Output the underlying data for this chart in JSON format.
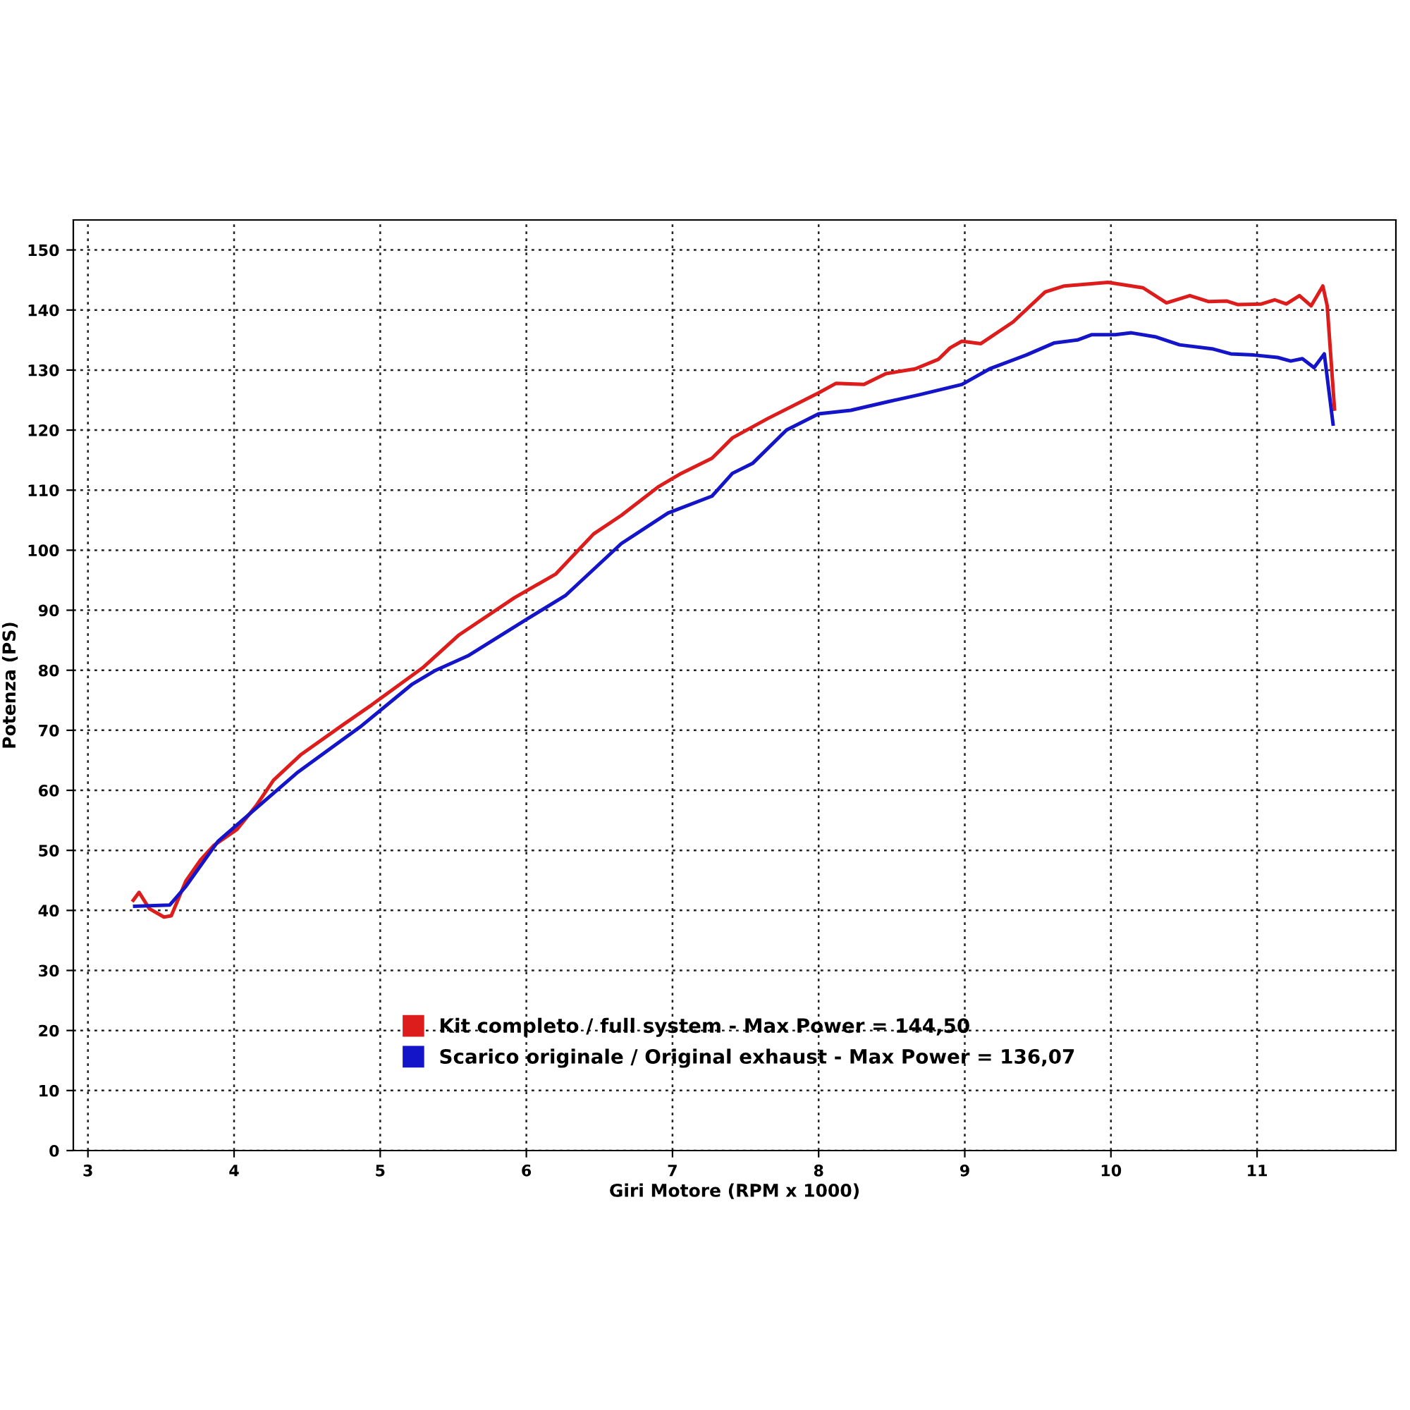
{
  "chart_data": {
    "type": "line",
    "xlabel": "Giri Motore (RPM x 1000)",
    "ylabel": "Potenza (PS)",
    "xlim": [
      2.9,
      11.95
    ],
    "ylim": [
      0,
      155
    ],
    "xticks": [
      3,
      4,
      5,
      6,
      7,
      8,
      9,
      10,
      11
    ],
    "yticks": [
      0,
      10,
      20,
      30,
      40,
      50,
      60,
      70,
      80,
      90,
      100,
      110,
      120,
      130,
      140,
      150
    ],
    "grid": true,
    "legend": "bottom",
    "line_style": "solid",
    "marker": "none",
    "series": [
      {
        "name": "Kit completo / full system - Max Power = 144,50",
        "color": "#dd1c1c",
        "x": [
          3.31,
          3.35,
          3.42,
          3.52,
          3.57,
          3.67,
          3.77,
          3.86,
          4.02,
          4.15,
          4.27,
          4.46,
          4.75,
          4.94,
          5.29,
          5.54,
          5.92,
          6.2,
          6.46,
          6.65,
          6.9,
          7.06,
          7.27,
          7.41,
          7.65,
          8.0,
          8.12,
          8.31,
          8.46,
          8.66,
          8.82,
          8.9,
          8.98,
          9.11,
          9.33,
          9.55,
          9.68,
          9.98,
          10.22,
          10.38,
          10.54,
          10.67,
          10.79,
          10.87,
          11.03,
          11.12,
          11.2,
          11.29,
          11.37,
          11.45,
          11.48,
          11.53
        ],
        "values": [
          41.7,
          43,
          40.3,
          38.9,
          39.1,
          44.9,
          48.4,
          50.8,
          53.5,
          57.4,
          61.7,
          66,
          71,
          74.2,
          80.4,
          85.9,
          92.1,
          96,
          102.7,
          105.8,
          110.5,
          112.8,
          115.3,
          118.7,
          121.9,
          126.2,
          127.8,
          127.6,
          129.4,
          130.2,
          131.8,
          133.7,
          134.8,
          134.4,
          138,
          143,
          144,
          144.6,
          143.7,
          141.2,
          142.4,
          141.4,
          141.5,
          140.9,
          141,
          141.7,
          141,
          142.4,
          140.7,
          144,
          140.7,
          123.5
        ]
      },
      {
        "name": "Scarico originale / Original exhaust - Max Power = 136,07",
        "color": "#1414c8",
        "x": [
          3.32,
          3.56,
          3.67,
          3.89,
          4.15,
          4.43,
          4.87,
          5.22,
          5.38,
          5.6,
          6.01,
          6.27,
          6.65,
          6.97,
          7.27,
          7.41,
          7.55,
          7.78,
          8.0,
          8.22,
          8.47,
          8.69,
          8.98,
          9.17,
          9.42,
          9.61,
          9.77,
          9.87,
          10.03,
          10.14,
          10.31,
          10.47,
          10.7,
          10.82,
          10.98,
          11.14,
          11.23,
          11.31,
          11.39,
          11.46,
          11.52
        ],
        "values": [
          40.7,
          40.9,
          44,
          51.5,
          57,
          62.9,
          70.7,
          77.7,
          80,
          82.4,
          88.6,
          92.5,
          101.1,
          106.2,
          109,
          112.8,
          114.5,
          120,
          122.7,
          123.3,
          124.7,
          125.9,
          127.6,
          130.2,
          132.5,
          134.5,
          135,
          135.9,
          135.9,
          136.2,
          135.5,
          134.2,
          133.5,
          132.7,
          132.5,
          132.1,
          131.5,
          131.9,
          130.4,
          132.7,
          121
        ]
      }
    ]
  }
}
